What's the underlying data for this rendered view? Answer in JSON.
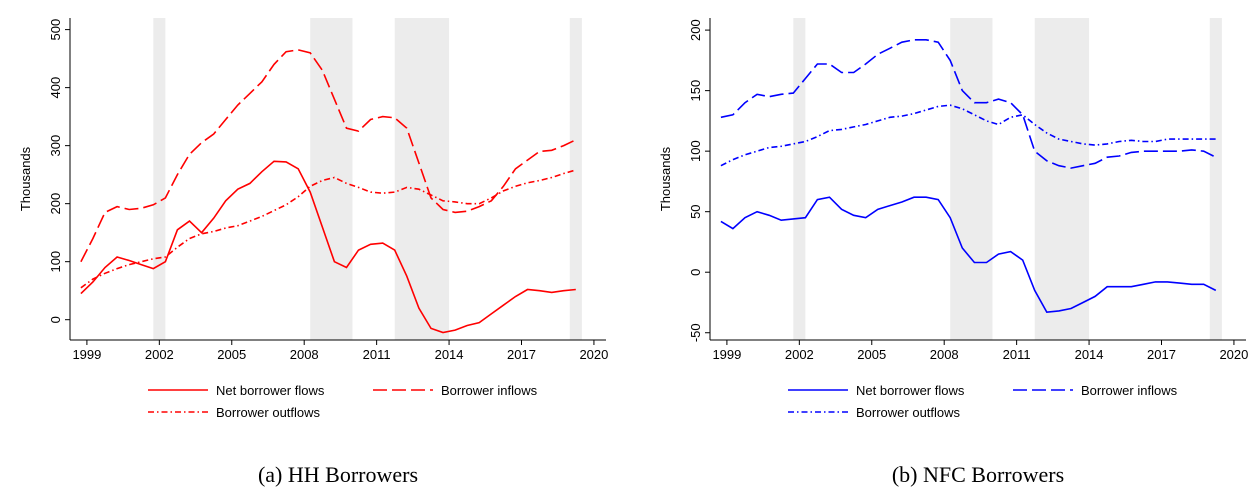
{
  "chart_data": [
    {
      "type": "line",
      "caption": "(a) HH Borrowers",
      "ylabel": "Thousands",
      "x": [
        1998.75,
        1999.25,
        1999.75,
        2000.25,
        2000.75,
        2001.25,
        2001.75,
        2002.25,
        2002.75,
        2003.25,
        2003.75,
        2004.25,
        2004.75,
        2005.25,
        2005.75,
        2006.25,
        2006.75,
        2007.25,
        2007.75,
        2008.25,
        2008.75,
        2009.25,
        2009.75,
        2010.25,
        2010.75,
        2011.25,
        2011.75,
        2012.25,
        2012.75,
        2013.25,
        2013.75,
        2014.25,
        2014.75,
        2015.25,
        2015.75,
        2016.25,
        2016.75,
        2017.25,
        2017.75,
        2018.25,
        2018.75,
        2019.25
      ],
      "series": [
        {
          "name": "Net borrower flows",
          "color": "#ff0000",
          "dash": "solid",
          "values": [
            45,
            65,
            90,
            108,
            102,
            95,
            88,
            100,
            155,
            170,
            150,
            175,
            205,
            225,
            235,
            255,
            273,
            272,
            260,
            220,
            160,
            100,
            90,
            120,
            130,
            132,
            120,
            75,
            20,
            -15,
            -22,
            -18,
            -10,
            -5,
            10,
            25,
            40,
            52,
            50,
            47,
            50,
            52
          ]
        },
        {
          "name": "Borrower inflows",
          "color": "#ff0000",
          "dash": "dashed",
          "values": [
            100,
            140,
            185,
            195,
            190,
            192,
            198,
            210,
            250,
            285,
            305,
            320,
            345,
            370,
            390,
            410,
            440,
            462,
            465,
            460,
            430,
            380,
            330,
            325,
            345,
            350,
            348,
            330,
            270,
            210,
            190,
            185,
            187,
            195,
            205,
            230,
            260,
            275,
            290,
            292,
            300,
            310
          ]
        },
        {
          "name": "Borrower outflows",
          "color": "#ff0000",
          "dash": "dashdot",
          "values": [
            55,
            70,
            80,
            88,
            95,
            100,
            105,
            108,
            125,
            140,
            148,
            152,
            158,
            162,
            170,
            178,
            188,
            198,
            212,
            230,
            240,
            245,
            235,
            228,
            220,
            218,
            220,
            228,
            225,
            215,
            205,
            203,
            200,
            200,
            210,
            222,
            230,
            236,
            240,
            245,
            252,
            258
          ]
        }
      ],
      "shaded_periods": [
        [
          2001.75,
          2002.25
        ],
        [
          2008.25,
          2010
        ],
        [
          2011.75,
          2014
        ],
        [
          2019,
          2019.5
        ]
      ],
      "xlim": [
        1998.3,
        2020.5
      ],
      "xticks": [
        1999,
        2002,
        2005,
        2008,
        2011,
        2014,
        2017,
        2020
      ],
      "ylim": [
        -35,
        520
      ],
      "yticks": [
        0,
        100,
        200,
        300,
        400,
        500
      ]
    },
    {
      "type": "line",
      "caption": "(b) NFC Borrowers",
      "ylabel": "Thousands",
      "x": [
        1998.75,
        1999.25,
        1999.75,
        2000.25,
        2000.75,
        2001.25,
        2001.75,
        2002.25,
        2002.75,
        2003.25,
        2003.75,
        2004.25,
        2004.75,
        2005.25,
        2005.75,
        2006.25,
        2006.75,
        2007.25,
        2007.75,
        2008.25,
        2008.75,
        2009.25,
        2009.75,
        2010.25,
        2010.75,
        2011.25,
        2011.75,
        2012.25,
        2012.75,
        2013.25,
        2013.75,
        2014.25,
        2014.75,
        2015.25,
        2015.75,
        2016.25,
        2016.75,
        2017.25,
        2017.75,
        2018.25,
        2018.75,
        2019.25
      ],
      "series": [
        {
          "name": "Net borrower flows",
          "color": "#0000ff",
          "dash": "solid",
          "values": [
            42,
            36,
            45,
            50,
            47,
            43,
            44,
            45,
            60,
            62,
            52,
            47,
            45,
            52,
            55,
            58,
            62,
            62,
            60,
            45,
            20,
            8,
            8,
            15,
            17,
            10,
            -15,
            -33,
            -32,
            -30,
            -25,
            -20,
            -12,
            -12,
            -12,
            -10,
            -8,
            -8,
            -9,
            -10,
            -10,
            -15
          ]
        },
        {
          "name": "Borrower inflows",
          "color": "#0000ff",
          "dash": "dashed",
          "values": [
            128,
            130,
            140,
            147,
            145,
            147,
            148,
            160,
            172,
            172,
            165,
            165,
            172,
            180,
            185,
            190,
            192,
            192,
            190,
            175,
            150,
            140,
            140,
            143,
            140,
            130,
            100,
            92,
            88,
            86,
            88,
            90,
            95,
            96,
            99,
            100,
            100,
            100,
            100,
            101,
            100,
            95
          ]
        },
        {
          "name": "Borrower outflows",
          "color": "#0000ff",
          "dash": "dashdot",
          "values": [
            88,
            93,
            97,
            100,
            103,
            104,
            106,
            108,
            112,
            117,
            118,
            120,
            122,
            125,
            128,
            129,
            131,
            134,
            137,
            138,
            135,
            130,
            125,
            122,
            128,
            130,
            122,
            115,
            110,
            108,
            106,
            105,
            106,
            108,
            109,
            108,
            108,
            110,
            110,
            110,
            110,
            110
          ]
        }
      ],
      "shaded_periods": [
        [
          2001.75,
          2002.25
        ],
        [
          2008.25,
          2010
        ],
        [
          2011.75,
          2014
        ],
        [
          2019,
          2019.5
        ]
      ],
      "xlim": [
        1998.3,
        2020.5
      ],
      "xticks": [
        1999,
        2002,
        2005,
        2008,
        2011,
        2014,
        2017,
        2020
      ],
      "ylim": [
        -56,
        210
      ],
      "yticks": [
        -50,
        0,
        50,
        100,
        150,
        200
      ]
    }
  ]
}
